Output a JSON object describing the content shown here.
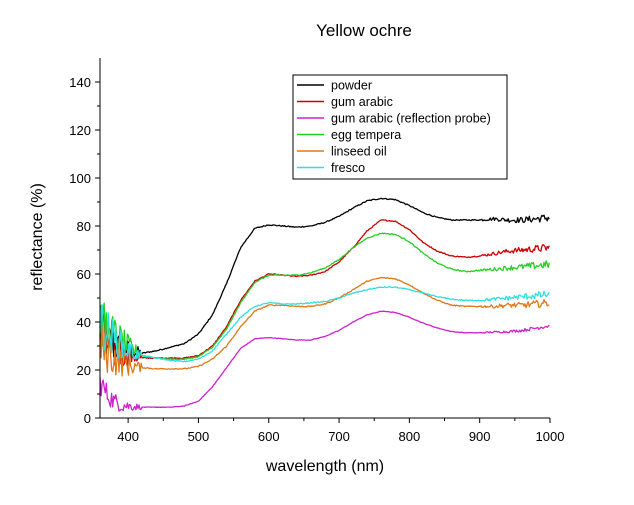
{
  "chart_data": {
    "type": "line",
    "title": "Yellow ochre",
    "xlabel": "wavelength (nm)",
    "ylabel": "reflectance (%)",
    "xlim": [
      360,
      1000
    ],
    "ylim": [
      0,
      150
    ],
    "xticks": [
      400,
      500,
      600,
      700,
      800,
      900,
      1000
    ],
    "yticks": [
      0,
      20,
      40,
      60,
      80,
      100,
      120,
      140
    ],
    "grid": false,
    "legend_position": "top-right",
    "series": [
      {
        "name": "powder",
        "color": "#000000",
        "noise_level": 1.0,
        "x": [
          360,
          380,
          400,
          420,
          440,
          460,
          480,
          500,
          520,
          540,
          560,
          580,
          600,
          620,
          640,
          660,
          680,
          700,
          720,
          740,
          760,
          780,
          800,
          820,
          840,
          860,
          880,
          900,
          920,
          940,
          960,
          980,
          1000
        ],
        "y": [
          35,
          30,
          28,
          27,
          28,
          29.5,
          31,
          35,
          43,
          56,
          71,
          79,
          80.5,
          80,
          79.5,
          80,
          81.5,
          84,
          87.5,
          90.5,
          91.5,
          91,
          88.5,
          85.5,
          83.5,
          82.5,
          82.5,
          82.5,
          83,
          82.5,
          82.5,
          83,
          83.5
        ]
      },
      {
        "name": "gum arabic",
        "color": "#cc0000",
        "noise_level": 1.0,
        "x": [
          360,
          380,
          400,
          420,
          440,
          460,
          480,
          500,
          520,
          540,
          560,
          580,
          600,
          620,
          640,
          660,
          680,
          700,
          720,
          740,
          760,
          780,
          800,
          820,
          840,
          860,
          880,
          900,
          920,
          940,
          960,
          980,
          1000
        ],
        "y": [
          35,
          28,
          26,
          25,
          25,
          25,
          25,
          26,
          30,
          38,
          49,
          57,
          60,
          59.5,
          59,
          59.5,
          61,
          65,
          71,
          78,
          82.5,
          82,
          78.5,
          73,
          69.5,
          67.5,
          67,
          67.5,
          68.5,
          69.5,
          70,
          70.5,
          71
        ]
      },
      {
        "name": "gum arabic (reflection probe)",
        "color": "#d020d0",
        "noise_level": 0.5,
        "x": [
          360,
          370,
          380,
          390,
          400,
          420,
          440,
          460,
          480,
          500,
          520,
          540,
          560,
          580,
          600,
          620,
          640,
          660,
          680,
          700,
          720,
          740,
          760,
          780,
          800,
          820,
          840,
          860,
          880,
          900,
          920,
          940,
          960,
          980,
          1000
        ],
        "y": [
          15,
          10,
          7,
          5.5,
          5,
          4.5,
          4.5,
          4.5,
          5,
          7,
          13,
          21,
          29,
          33,
          33.5,
          33,
          32.5,
          32.5,
          34,
          36.5,
          40,
          43,
          44.5,
          44,
          42,
          39.5,
          37.5,
          36,
          35.5,
          35.5,
          35.8,
          36,
          36.5,
          37.5,
          38.5
        ]
      },
      {
        "name": "egg tempera",
        "color": "#22d022",
        "noise_level": 1.0,
        "x": [
          360,
          380,
          400,
          420,
          440,
          460,
          480,
          500,
          520,
          540,
          560,
          580,
          600,
          620,
          640,
          660,
          680,
          700,
          720,
          740,
          760,
          780,
          800,
          820,
          840,
          860,
          880,
          900,
          920,
          940,
          960,
          980,
          1000
        ],
        "y": [
          40,
          35,
          30,
          26,
          25,
          24.5,
          24.5,
          25.5,
          29.5,
          37,
          48,
          56.5,
          59.5,
          59.5,
          59.5,
          60.5,
          62.5,
          66,
          71,
          75,
          77,
          76.5,
          73.5,
          68.5,
          64.5,
          62,
          61,
          61.5,
          62,
          62.5,
          63,
          63.5,
          64
        ]
      },
      {
        "name": "linseed oil",
        "color": "#e07818",
        "noise_level": 1.0,
        "x": [
          360,
          380,
          400,
          420,
          440,
          460,
          480,
          500,
          520,
          540,
          560,
          580,
          600,
          620,
          640,
          660,
          680,
          700,
          720,
          740,
          760,
          780,
          800,
          820,
          840,
          860,
          880,
          900,
          920,
          940,
          960,
          980,
          1000
        ],
        "y": [
          30,
          25,
          22,
          21,
          20.5,
          20.5,
          20.5,
          21.5,
          24.5,
          30,
          38,
          44.5,
          47,
          47,
          46.5,
          46.5,
          47.5,
          50,
          53.5,
          57,
          58.5,
          58,
          55.5,
          52,
          49,
          47,
          46.5,
          46.5,
          46.5,
          47,
          47,
          47.5,
          48
        ]
      },
      {
        "name": "fresco",
        "color": "#30e0e0",
        "noise_level": 1.0,
        "x": [
          360,
          380,
          400,
          420,
          440,
          460,
          480,
          500,
          520,
          540,
          560,
          580,
          600,
          620,
          640,
          660,
          680,
          700,
          720,
          740,
          760,
          780,
          800,
          820,
          840,
          860,
          880,
          900,
          920,
          940,
          960,
          980,
          1000
        ],
        "y": [
          40,
          33,
          28,
          26,
          25,
          24,
          23.5,
          24.5,
          28,
          35,
          42,
          46.5,
          48,
          47.5,
          47.5,
          48,
          48.5,
          50,
          52,
          53.5,
          54.5,
          54.5,
          53.5,
          52,
          50.5,
          49.5,
          49,
          49,
          49.5,
          50,
          50.5,
          51,
          51.5
        ]
      }
    ]
  }
}
